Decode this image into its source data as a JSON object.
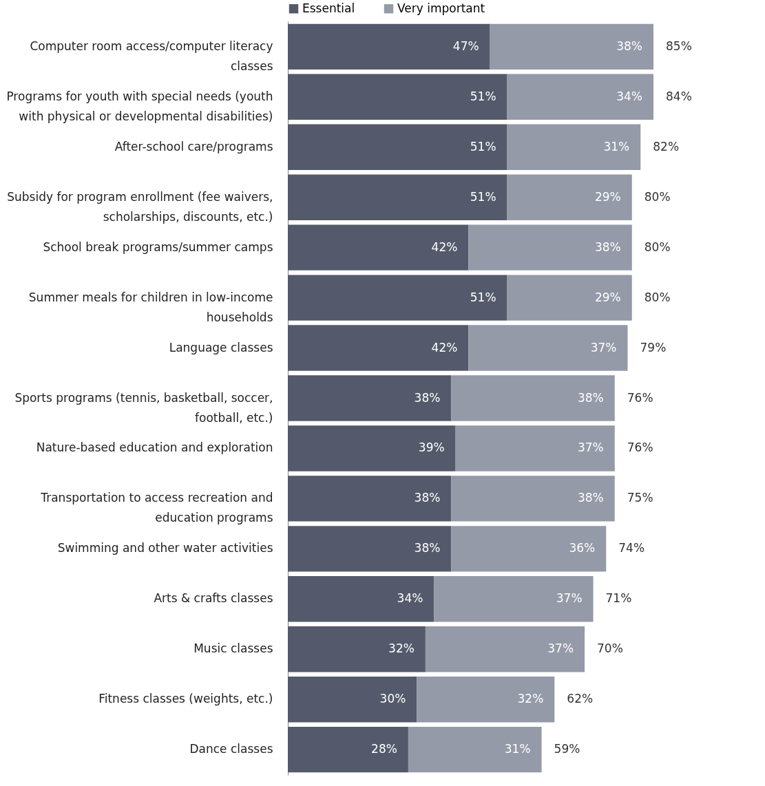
{
  "chart_data": {
    "type": "bar",
    "orientation": "horizontal",
    "stacked": true,
    "legend": "top",
    "tick_labels": "y",
    "categories": [
      "Computer room access/computer literacy classes",
      "Programs for youth with special needs (youth with physical or developmental disabilities)",
      "After-school care/programs",
      "Subsidy for program enrollment (fee waivers, scholarships, discounts, etc.)",
      "School break programs/summer camps",
      "Summer meals for children in low-income households",
      "Language classes",
      "Sports programs (tennis, basketball, soccer, football, etc.)",
      "Nature-based education and exploration",
      "Transportation to access recreation and education programs",
      "Swimming and other water activities",
      "Arts & crafts classes",
      "Music classes",
      "Fitness classes (weights, etc.)",
      "Dance classes"
    ],
    "series": [
      {
        "name": "Essential",
        "color": "#545a6b",
        "values": [
          47,
          51,
          51,
          51,
          42,
          51,
          42,
          38,
          39,
          38,
          38,
          34,
          32,
          30,
          28
        ],
        "value_labels": [
          "47%",
          "51%",
          "51%",
          "51%",
          "42%",
          "51%",
          "42%",
          "38%",
          "39%",
          "38%",
          "38%",
          "34%",
          "32%",
          "30%",
          "28%"
        ]
      },
      {
        "name": "Very important",
        "color": "#959aa8",
        "values": [
          38,
          34,
          31,
          29,
          38,
          29,
          37,
          38,
          37,
          38,
          36,
          37,
          37,
          32,
          31
        ],
        "value_labels": [
          "38%",
          "34%",
          "31%",
          "29%",
          "38%",
          "29%",
          "37%",
          "38%",
          "37%",
          "38%",
          "36%",
          "37%",
          "37%",
          "32%",
          "31%"
        ]
      }
    ],
    "totals": [
      "85%",
      "84%",
      "82%",
      "80%",
      "80%",
      "80%",
      "79%",
      "76%",
      "76%",
      "75%",
      "74%",
      "71%",
      "70%",
      "62%",
      "59%"
    ]
  }
}
